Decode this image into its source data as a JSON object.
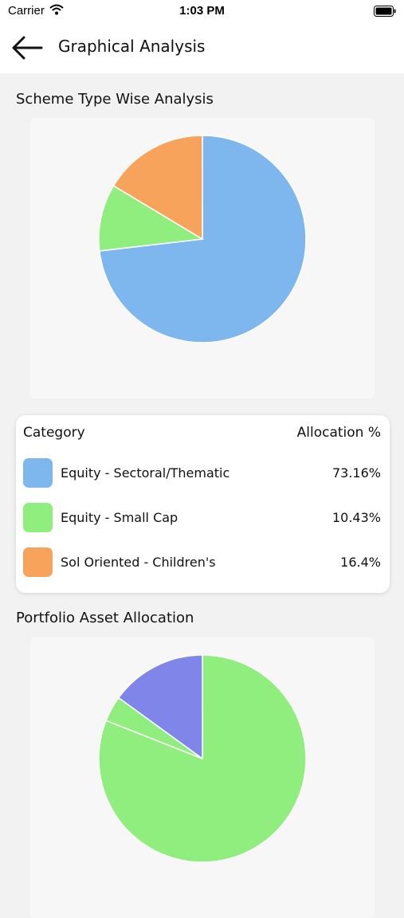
{
  "status_bar": {
    "carrier": "Carrier",
    "time": "1:03 PM",
    "wifi_icon": "wifi-icon",
    "battery_icon": "battery-icon"
  },
  "header": {
    "title": "Graphical Analysis",
    "back_icon": "arrow-left-icon"
  },
  "scheme_section": {
    "title": "Scheme Type Wise Analysis"
  },
  "legend": {
    "header_category": "Category",
    "header_allocation": "Allocation %",
    "rows": [
      {
        "label": "Equity - Sectoral/Thematic",
        "value": "73.16%",
        "color": "#7eb6ee"
      },
      {
        "label": "Equity - Small Cap",
        "value": "10.43%",
        "color": "#90ee7e"
      },
      {
        "label": "Sol Oriented - Children's",
        "value": "16.4%",
        "color": "#f7a35c"
      }
    ]
  },
  "portfolio_section": {
    "title": "Portfolio Asset Allocation"
  },
  "chart_data": [
    {
      "type": "pie",
      "title": "Scheme Type Wise Analysis",
      "categories": [
        "Equity - Sectoral/Thematic",
        "Equity - Small Cap",
        "Sol Oriented - Children's"
      ],
      "values": [
        73.16,
        10.43,
        16.4
      ],
      "colors": [
        "#7eb6ee",
        "#90ee7e",
        "#f7a35c"
      ]
    },
    {
      "type": "pie",
      "title": "Portfolio Asset Allocation",
      "categories": [
        "",
        "",
        ""
      ],
      "values": [
        81,
        4,
        15
      ],
      "colors": [
        "#90ee7e",
        "#90ee7e",
        "#8085e9"
      ]
    }
  ]
}
